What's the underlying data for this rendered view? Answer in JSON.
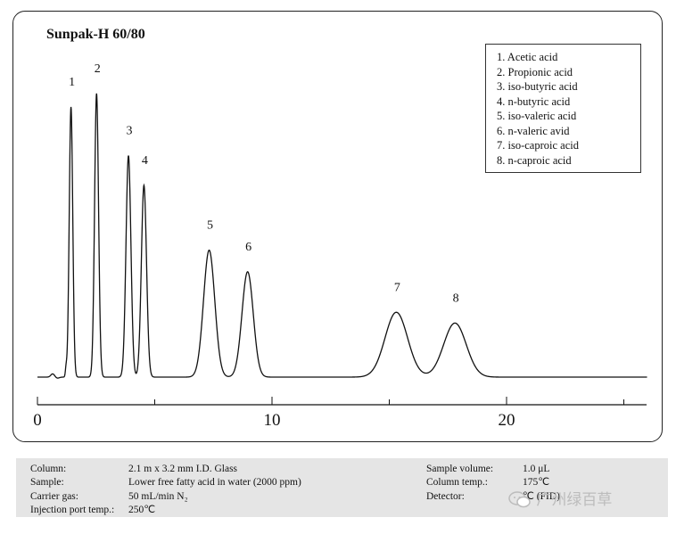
{
  "chart_data": {
    "type": "line",
    "title": "Sunpak-H 60/80",
    "xlabel": "",
    "ylabel": "",
    "xlim": [
      0,
      26
    ],
    "x_ticks": [
      0,
      10,
      20
    ],
    "x_tick_labels": [
      "0",
      "10",
      "20"
    ],
    "grid": false,
    "legend_placement": "top-right",
    "baseline": 0,
    "peaks": [
      {
        "label": "1",
        "rt": 1.43,
        "height": 1.0,
        "width": 0.075
      },
      {
        "label": "2",
        "rt": 2.52,
        "height": 1.05,
        "width": 0.085
      },
      {
        "label": "3",
        "rt": 3.88,
        "height": 0.82,
        "width": 0.105
      },
      {
        "label": "4",
        "rt": 4.54,
        "height": 0.71,
        "width": 0.11
      },
      {
        "label": "5",
        "rt": 7.32,
        "height": 0.47,
        "width": 0.24
      },
      {
        "label": "6",
        "rt": 8.96,
        "height": 0.39,
        "width": 0.24
      },
      {
        "label": "7",
        "rt": 15.3,
        "height": 0.24,
        "width": 0.48
      },
      {
        "label": "8",
        "rt": 17.8,
        "height": 0.2,
        "width": 0.48
      }
    ],
    "legend": [
      "1.  Acetic acid",
      "2.  Propionic acid",
      "3.  iso-butyric acid",
      "4.  n-butyric acid",
      "5.  iso-valeric acid",
      "6.  n-valeric avid",
      "7.  iso-caproic acid",
      "8.  n-caproic acid"
    ]
  },
  "conditions": {
    "left": [
      {
        "label": "Column:",
        "value": "2.1 m x 3.2 mm I.D. Glass"
      },
      {
        "label": "Sample:",
        "value": "Lower free fatty acid in water (2000 ppm)"
      },
      {
        "label": "Carrier gas:",
        "value": "50 mL/min N₂"
      },
      {
        "label": "Injection port temp.:",
        "value": "250℃"
      }
    ],
    "right": [
      {
        "label": "Sample volume:",
        "value": "1.0 μL"
      },
      {
        "label": "Column temp.:",
        "value": "175℃"
      },
      {
        "label": "Detector:",
        "value": "℃ (FID)"
      }
    ]
  },
  "watermark": "广州绿百草",
  "colors": {
    "line": "#111111",
    "panel": "#e5e5e5",
    "watermark": "#bcbcbc"
  }
}
